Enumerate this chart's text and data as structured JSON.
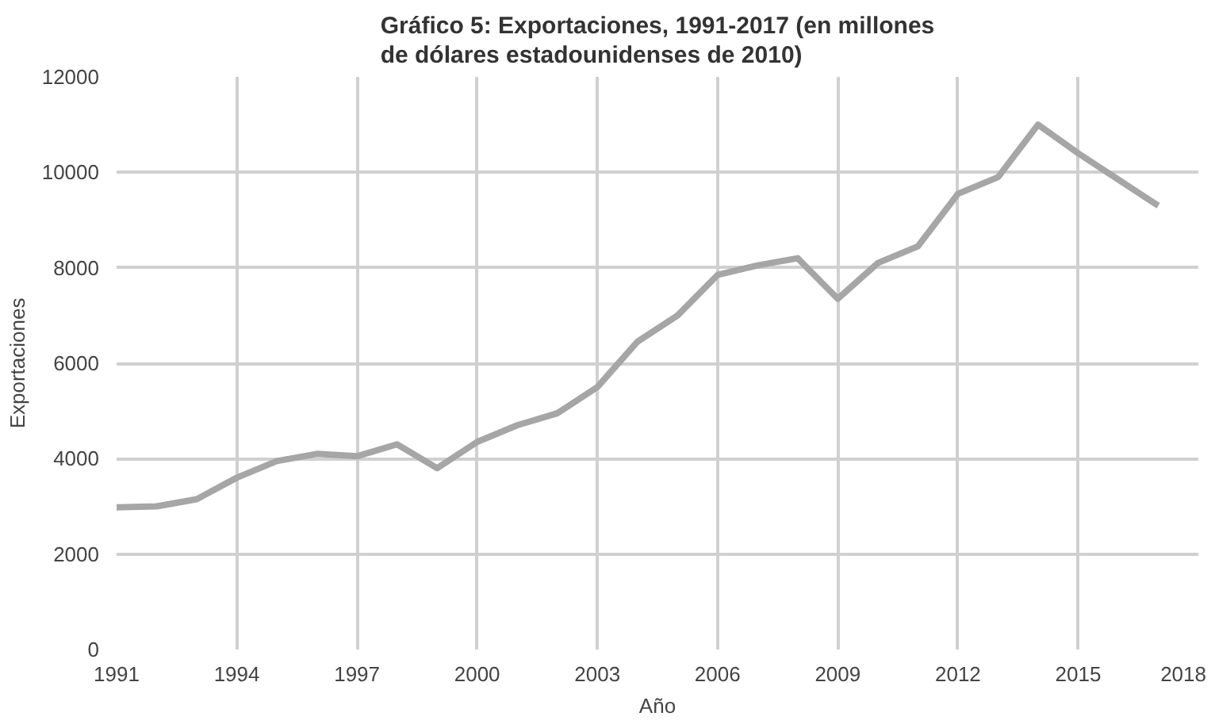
{
  "chart_data": {
    "type": "line",
    "title": "Gráfico 5: Exportaciones, 1991-2017 (en millones\nde dólares estadounidenses de 2010)",
    "xlabel": "Año",
    "ylabel": "Exportaciones",
    "x": [
      1991,
      1992,
      1993,
      1994,
      1995,
      1996,
      1997,
      1998,
      1999,
      2000,
      2001,
      2002,
      2003,
      2004,
      2005,
      2006,
      2007,
      2008,
      2009,
      2010,
      2011,
      2012,
      2013,
      2014,
      2015,
      2016,
      2017
    ],
    "series": [
      {
        "color": "#a6a6a6",
        "values": [
          2980,
          3000,
          3150,
          3600,
          3950,
          4100,
          4050,
          4300,
          3800,
          4350,
          4700,
          4950,
          5500,
          6450,
          7000,
          7850,
          8050,
          8200,
          7350,
          8100,
          8450,
          9550,
          9900,
          11000,
          10400,
          9850,
          9300
        ]
      }
    ],
    "xlim": [
      1991,
      2018
    ],
    "xticks": [
      1991,
      1994,
      1997,
      2000,
      2003,
      2006,
      2009,
      2012,
      2015,
      2018
    ],
    "ylim": [
      0,
      12000
    ],
    "yticks": [
      0,
      2000,
      4000,
      6000,
      8000,
      10000,
      12000
    ],
    "grid": true,
    "marker": "none",
    "line_style": "solid"
  }
}
